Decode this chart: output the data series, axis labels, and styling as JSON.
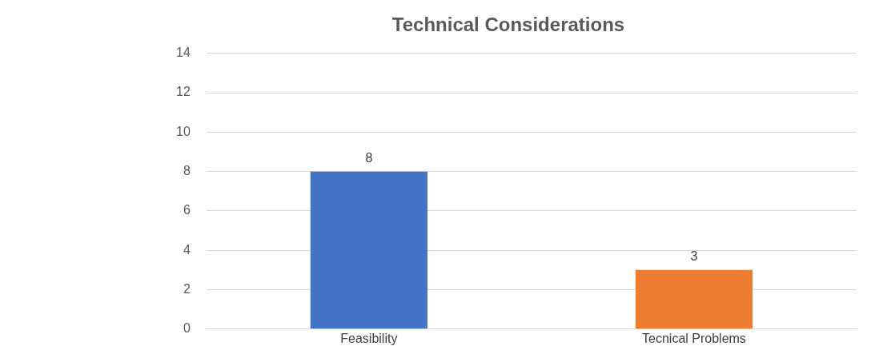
{
  "chart_data": {
    "type": "bar",
    "title": "Technical Considerations",
    "categories": [
      "Feasibility",
      "Tecnical Problems"
    ],
    "values": [
      8,
      3
    ],
    "colors": [
      "#4472c4",
      "#ed7d31"
    ],
    "ylim": [
      0,
      14
    ],
    "yticks": [
      0,
      2,
      4,
      6,
      8,
      10,
      12,
      14
    ],
    "grid": "y",
    "data_labels": true
  }
}
